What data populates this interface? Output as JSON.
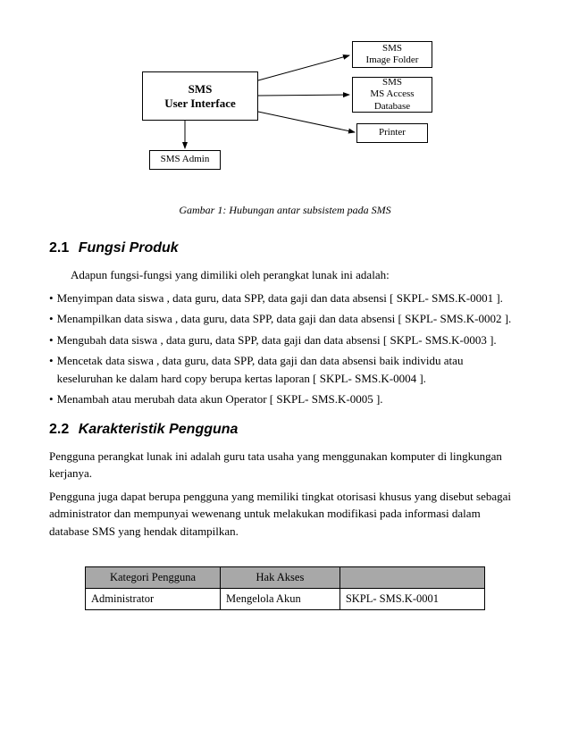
{
  "diagram": {
    "main": {
      "line1": "SMS",
      "line2": "User Interface"
    },
    "nodes": [
      {
        "line1": "SMS",
        "line2": "Image Folder"
      },
      {
        "line1": "SMS",
        "line2": "MS Access",
        "line3": "Database"
      },
      {
        "line1": "Printer"
      }
    ],
    "admin": "SMS Admin",
    "style": {
      "border_color": "#000000",
      "background_color": "#ffffff",
      "font_size_main": 13,
      "font_size_nodes": 11,
      "arrow_stroke": "#000000"
    }
  },
  "caption": "Gambar 1: Hubungan antar subsistem pada SMS",
  "sections": {
    "s21": {
      "num": "2.1",
      "title": "Fungsi Produk"
    },
    "s22": {
      "num": "2.2",
      "title": "Karakteristik Pengguna"
    }
  },
  "intro": "Adapun fungsi-fungsi yang dimiliki oleh perangkat lunak ini adalah:",
  "bullets": [
    "Menyimpan data siswa , data guru, data SPP, data gaji dan data absensi [ SKPL- SMS.K-0001 ].",
    "Menampilkan data siswa , data guru, data SPP, data gaji dan data absensi [ SKPL- SMS.K-0002 ].",
    "Mengubah data siswa , data guru, data SPP, data gaji dan data absensi [ SKPL- SMS.K-0003 ].",
    "Mencetak data siswa , data guru, data SPP, data gaji dan data absensi baik individu atau keseluruhan ke dalam hard copy berupa kertas laporan [ SKPL- SMS.K-0004 ].",
    "Menambah atau merubah data akun Operator [ SKPL- SMS.K-0005 ]."
  ],
  "paragraphs": [
    "Pengguna perangkat lunak ini adalah guru tata usaha yang menggunakan komputer di lingkungan kerjanya.",
    "Pengguna juga dapat berupa pengguna yang memiliki tingkat otorisasi khusus yang disebut sebagai administrator dan mempunyai wewenang untuk melakukan modifikasi pada informasi dalam database SMS yang hendak ditampilkan."
  ],
  "table": {
    "columns": [
      "Kategori Pengguna",
      "Hak Akses",
      ""
    ],
    "rows": [
      [
        "Administrator",
        "Mengelola Akun",
        "SKPL- SMS.K-0001"
      ]
    ],
    "header_bg": "#a8a8a8",
    "border_color": "#000000"
  }
}
